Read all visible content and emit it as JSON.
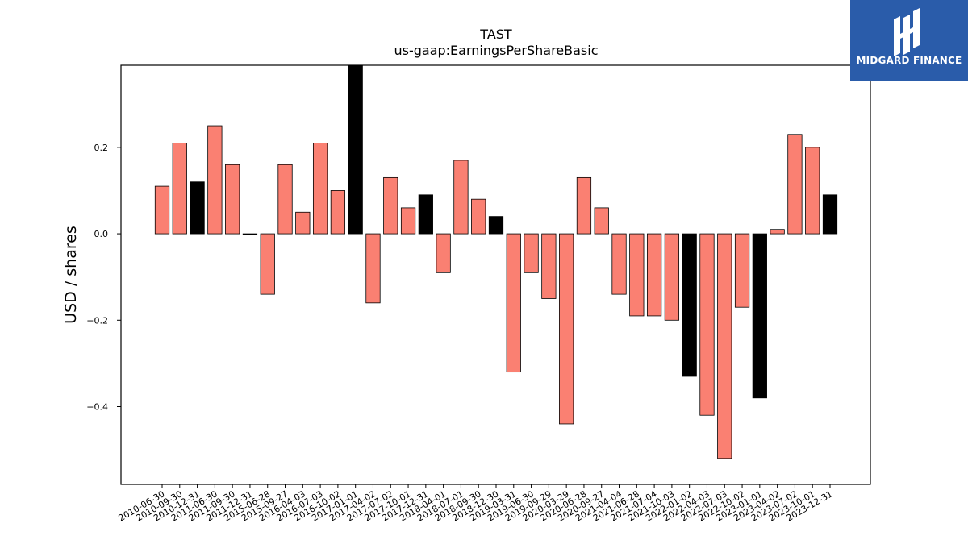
{
  "chart_data": {
    "type": "bar",
    "title": "TAST",
    "subtitle": "us-gaap:EarningsPerShareBasic",
    "ylabel": "USD / shares",
    "xlabel": "",
    "ylim": [
      -0.58,
      0.39
    ],
    "yticks": [
      0.2,
      0.0,
      -0.2,
      -0.4
    ],
    "ytick_labels": [
      "0.2",
      "0.0",
      "−0.2",
      "−0.4"
    ],
    "grid": false,
    "colors": {
      "quarter": "#fa8072",
      "annual": "#000000",
      "edge": "#000000"
    },
    "categories": [
      "2010-06-30",
      "2010-09-30",
      "2010-12-31",
      "2011-06-30",
      "2011-09-30",
      "2011-12-31",
      "2015-06-28",
      "2015-09-27",
      "2016-04-03",
      "2016-07-03",
      "2016-10-02",
      "2017-01-01",
      "2017-04-02",
      "2017-07-02",
      "2017-10-01",
      "2017-12-31",
      "2018-04-01",
      "2018-07-01",
      "2018-09-30",
      "2018-12-30",
      "2019-03-31",
      "2019-06-30",
      "2019-09-29",
      "2020-03-29",
      "2020-06-28",
      "2020-09-27",
      "2021-04-04",
      "2021-06-28",
      "2021-07-04",
      "2021-10-03",
      "2022-01-02",
      "2022-04-03",
      "2022-07-03",
      "2022-10-02",
      "2023-01-01",
      "2023-04-02",
      "2023-07-02",
      "2023-10-01",
      "2023-12-31"
    ],
    "series": [
      {
        "values": [
          0.11,
          0.21,
          0.12,
          0.25,
          0.16,
          0.0,
          -0.14,
          0.16,
          0.05,
          0.21,
          0.1,
          0.39,
          -0.16,
          0.13,
          0.06,
          0.09,
          -0.09,
          0.17,
          0.08,
          0.04,
          -0.32,
          -0.09,
          -0.15,
          -0.44,
          0.13,
          0.06,
          -0.14,
          -0.19,
          -0.19,
          -0.2,
          -0.33,
          -0.42,
          -0.52,
          -0.17,
          -0.38,
          0.01,
          0.23,
          0.2,
          0.09
        ]
      }
    ],
    "annual_flags": [
      false,
      false,
      true,
      false,
      false,
      false,
      false,
      false,
      false,
      false,
      false,
      true,
      false,
      false,
      false,
      true,
      false,
      false,
      false,
      true,
      false,
      false,
      false,
      false,
      false,
      false,
      false,
      false,
      false,
      false,
      true,
      false,
      false,
      false,
      true,
      false,
      false,
      false,
      true
    ]
  },
  "logo": {
    "text": "MIDGARD FINANCE",
    "icon": "midgard-logo-icon",
    "background": "#2a5caa"
  }
}
